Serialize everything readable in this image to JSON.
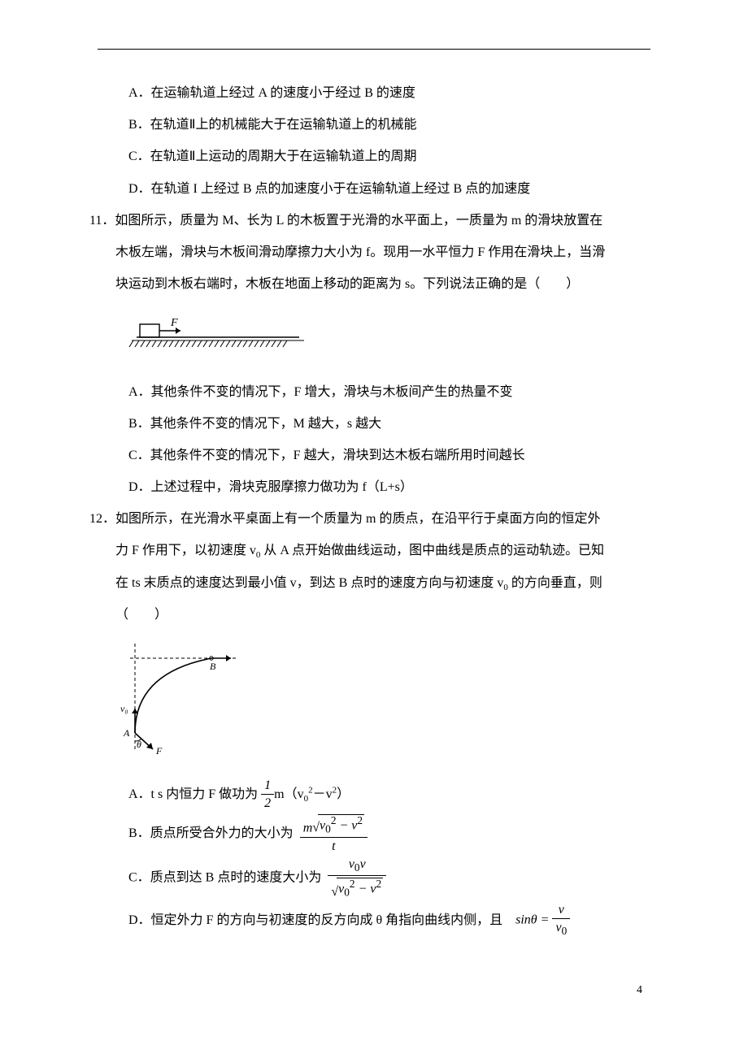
{
  "colors": {
    "text": "#000000",
    "background": "#ffffff",
    "rule": "#000000"
  },
  "typography": {
    "body_family": "SimSun",
    "body_size_pt": 12,
    "math_family": "Cambria Math",
    "line_height": 2.2
  },
  "q10_tail": {
    "A": "A．在运输轨道上经过 A 的速度小于经过 B 的速度",
    "B": "B．在轨道Ⅱ上的机械能大于在运输轨道上的机械能",
    "C": "C．在轨道Ⅱ上运动的周期大于在运输轨道上的周期",
    "D": "D．在轨道 I 上经过 B 点的加速度小于在运输轨道上经过 B 点的加速度"
  },
  "q11": {
    "num": "11．",
    "stem1": "如图所示，质量为 M、长为 L 的木板置于光滑的水平面上，一质量为 m 的滑块放置在",
    "stem2": "木板左端，滑块与木板间滑动摩擦力大小为 f。现用一水平恒力 F 作用在滑块上，当滑",
    "stem3": "块运动到木板右端时，木板在地面上移动的距离为 s。下列说法正确的是（　　）",
    "figure": {
      "force_label": "F",
      "block_w": 24,
      "block_h": 16,
      "plank_w": 200,
      "plank_h": 4,
      "hatch_count": 28,
      "hatch_spacing": 7,
      "hatch_len": 8,
      "stroke": "#000000",
      "stroke_w": 1.4
    },
    "A": "A．其他条件不变的情况下，F 增大，滑块与木板间产生的热量不变",
    "B": "B．其他条件不变的情况下，M 越大，s 越大",
    "C": "C．其他条件不变的情况下，F 越大，滑块到达木板右端所用时间越长",
    "D": "D．上述过程中，滑块克服摩擦力做功为 f（L+s）"
  },
  "q12": {
    "num": "12．",
    "stem1": "如图所示，在光滑水平桌面上有一个质量为 m 的质点，在沿平行于桌面方向的恒定外",
    "stem2": "力 F 作用下，以初速度 v",
    "stem2b": "从 A 点开始做曲线运动，图中曲线是质点的运动轨迹。已知",
    "stem3a": "在 ts 末质点的速度达到最小值 v，到达 B 点时的速度方向与初速度 v",
    "stem3b": " 的方向垂直，则",
    "blank": "（　　）",
    "figure": {
      "width": 150,
      "height": 150,
      "A_label": "A",
      "B_label": "B",
      "v0_label": "v₀",
      "F_label": "F",
      "theta_label": "θ",
      "stroke": "#000000",
      "stroke_w": 1.2,
      "dash": "4 3"
    },
    "A_pre": "A．t s 内恒力 F 做功为",
    "A_post": "m（v",
    "A_post2": "－v",
    "A_post3": "）",
    "B_pre": "B．质点所受合外力的大小为",
    "C_pre": "C．质点到达 B 点时的速度大小为",
    "D_pre": "D．恒定外力 F 的方向与初速度的反方向成 θ 角指向曲线内侧，且",
    "sin_lhs": "sinθ ="
  },
  "page_num": "4"
}
